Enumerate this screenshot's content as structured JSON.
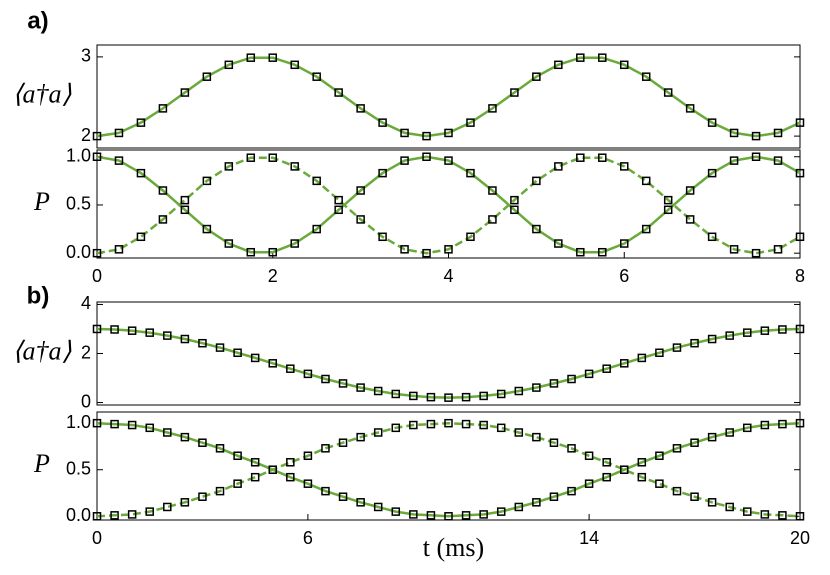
{
  "chart_data": [
    {
      "type": "line",
      "panel_label": "a)",
      "ylabel": "⟨a†a⟩",
      "x": [
        0,
        0.25,
        0.5,
        0.75,
        1,
        1.25,
        1.5,
        1.75,
        2,
        2.25,
        2.5,
        2.75,
        3,
        3.25,
        3.5,
        3.75,
        4,
        4.25,
        4.5,
        4.75,
        5,
        5.25,
        5.5,
        5.75,
        6,
        6.25,
        6.5,
        6.75,
        7,
        7.25,
        7.5,
        7.75,
        8
      ],
      "xlim": [
        0,
        8
      ],
      "ylim": [
        1.85,
        3.15
      ],
      "yticks": [
        2,
        3
      ],
      "series": [
        {
          "color": "#6aaa3a",
          "line_style": "solid",
          "markers": true,
          "values": [
            2.0,
            2.04,
            2.17,
            2.35,
            2.55,
            2.75,
            2.9,
            2.99,
            2.99,
            2.9,
            2.75,
            2.55,
            2.35,
            2.17,
            2.04,
            2.0,
            2.04,
            2.17,
            2.35,
            2.55,
            2.75,
            2.9,
            2.99,
            2.99,
            2.9,
            2.75,
            2.55,
            2.35,
            2.17,
            2.04,
            2.0,
            2.04,
            2.17
          ]
        }
      ]
    },
    {
      "type": "line",
      "ylabel": "P",
      "x": [
        0,
        0.25,
        0.5,
        0.75,
        1,
        1.25,
        1.5,
        1.75,
        2,
        2.25,
        2.5,
        2.75,
        3,
        3.25,
        3.5,
        3.75,
        4,
        4.25,
        4.5,
        4.75,
        5,
        5.25,
        5.5,
        5.75,
        6,
        6.25,
        6.5,
        6.75,
        7,
        7.25,
        7.5,
        7.75,
        8
      ],
      "xlim": [
        0,
        8
      ],
      "ylim": [
        -0.05,
        1.07
      ],
      "xticks": [
        0,
        2,
        4,
        6,
        8
      ],
      "yticks": [
        {
          "value": 0,
          "label": "0.0"
        },
        {
          "value": 0.5,
          "label": "0.5"
        },
        {
          "value": 1,
          "label": "1.0"
        }
      ],
      "series": [
        {
          "color": "#6aaa3a",
          "line_style": "solid",
          "markers": true,
          "values": [
            1,
            0.96,
            0.83,
            0.65,
            0.45,
            0.25,
            0.1,
            0.01,
            0.01,
            0.1,
            0.25,
            0.45,
            0.65,
            0.83,
            0.96,
            1,
            0.96,
            0.83,
            0.65,
            0.45,
            0.25,
            0.1,
            0.01,
            0.01,
            0.1,
            0.25,
            0.45,
            0.65,
            0.83,
            0.96,
            1,
            0.96,
            0.83
          ]
        },
        {
          "color": "#6aaa3a",
          "line_style": "dashed",
          "markers": true,
          "values": [
            0,
            0.04,
            0.17,
            0.35,
            0.55,
            0.75,
            0.9,
            0.99,
            0.99,
            0.9,
            0.75,
            0.55,
            0.35,
            0.17,
            0.04,
            0,
            0.04,
            0.17,
            0.35,
            0.55,
            0.75,
            0.9,
            0.99,
            0.99,
            0.9,
            0.75,
            0.55,
            0.35,
            0.17,
            0.04,
            0,
            0.04,
            0.17
          ]
        }
      ]
    },
    {
      "type": "line",
      "panel_label": "b)",
      "ylabel": "⟨a†a⟩",
      "x": [
        0,
        0.5,
        1,
        1.5,
        2,
        2.5,
        3,
        3.5,
        4,
        4.5,
        5,
        5.5,
        6,
        6.5,
        7,
        7.5,
        8,
        8.5,
        9,
        9.5,
        10,
        10.5,
        11,
        11.5,
        12,
        12.5,
        13,
        13.5,
        14,
        14.5,
        15,
        15.5,
        16,
        16.5,
        17,
        17.5,
        18,
        18.5,
        19,
        19.5,
        20
      ],
      "xlim": [
        0,
        20
      ],
      "ylim": [
        -0.1,
        4.1
      ],
      "yticks": [
        0,
        2,
        4
      ],
      "series": [
        {
          "color": "#6aaa3a",
          "line_style": "solid",
          "markers": true,
          "values": [
            3.0,
            2.98,
            2.93,
            2.85,
            2.73,
            2.59,
            2.42,
            2.24,
            2.03,
            1.82,
            1.6,
            1.38,
            1.17,
            0.96,
            0.78,
            0.61,
            0.47,
            0.35,
            0.27,
            0.22,
            0.2,
            0.22,
            0.27,
            0.35,
            0.47,
            0.61,
            0.78,
            0.96,
            1.17,
            1.38,
            1.6,
            1.82,
            2.03,
            2.24,
            2.42,
            2.59,
            2.73,
            2.85,
            2.93,
            2.98,
            3.0
          ]
        }
      ]
    },
    {
      "type": "line",
      "ylabel": "P",
      "xlabel": "t (ms)",
      "x": [
        0,
        0.5,
        1,
        1.5,
        2,
        2.5,
        3,
        3.5,
        4,
        4.5,
        5,
        5.5,
        6,
        6.5,
        7,
        7.5,
        8,
        8.5,
        9,
        9.5,
        10,
        10.5,
        11,
        11.5,
        12,
        12.5,
        13,
        13.5,
        14,
        14.5,
        15,
        15.5,
        16,
        16.5,
        17,
        17.5,
        18,
        18.5,
        19,
        19.5,
        20
      ],
      "xlim": [
        0,
        20
      ],
      "ylim": [
        -0.04,
        1.12
      ],
      "xticks": [
        0,
        6,
        14,
        20
      ],
      "yticks": [
        {
          "value": 0,
          "label": "0.0"
        },
        {
          "value": 0.5,
          "label": "0.5"
        },
        {
          "value": 1,
          "label": "1.0"
        }
      ],
      "series": [
        {
          "color": "#6aaa3a",
          "line_style": "solid",
          "markers": true,
          "values": [
            1,
            0.99,
            0.98,
            0.95,
            0.9,
            0.85,
            0.79,
            0.73,
            0.65,
            0.58,
            0.5,
            0.42,
            0.35,
            0.27,
            0.21,
            0.15,
            0.1,
            0.05,
            0.02,
            0.01,
            0,
            0.01,
            0.02,
            0.05,
            0.1,
            0.15,
            0.21,
            0.27,
            0.35,
            0.42,
            0.5,
            0.58,
            0.65,
            0.73,
            0.79,
            0.85,
            0.9,
            0.95,
            0.98,
            0.99,
            1
          ]
        },
        {
          "color": "#6aaa3a",
          "line_style": "dashed",
          "markers": true,
          "values": [
            0,
            0.01,
            0.02,
            0.05,
            0.1,
            0.15,
            0.21,
            0.27,
            0.35,
            0.42,
            0.5,
            0.58,
            0.65,
            0.73,
            0.79,
            0.85,
            0.9,
            0.95,
            0.98,
            0.99,
            1,
            0.99,
            0.98,
            0.95,
            0.9,
            0.85,
            0.79,
            0.73,
            0.65,
            0.58,
            0.5,
            0.42,
            0.35,
            0.27,
            0.21,
            0.15,
            0.1,
            0.05,
            0.02,
            0.01,
            0
          ]
        }
      ]
    }
  ]
}
